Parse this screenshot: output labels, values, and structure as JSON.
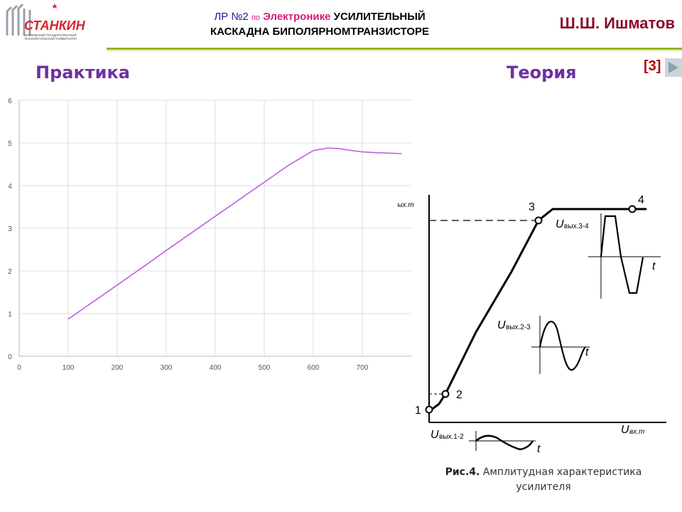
{
  "header": {
    "logo_text": "СТАНКИН",
    "logo_subtitle": "МОСКОВСКИЙ ГОСУДАРСТВЕННЫЙ ТЕХНОЛОГИЧЕСКИЙ УНИВЕРСИТЕТ",
    "lr": "ЛР №2",
    "po": "по",
    "subject": "Электронике",
    "title_line1": "УСИЛИТЕЛЬНЫЙ",
    "title_line2": "КАСКАДНА БИПОЛЯРНОМТРАНЗИСТОРЕ",
    "author": "Ш.Ш. Ишматов"
  },
  "practice_label": "Практика",
  "theory_label": "Теория",
  "reference": "[3]",
  "colors": {
    "curve": "#c060e0",
    "header_accent": "#8fb31f",
    "label": "#7030a0",
    "author": "#8b0a2a"
  },
  "chart_data": {
    "type": "line",
    "x": [
      100,
      150,
      200,
      250,
      300,
      350,
      400,
      450,
      500,
      550,
      600,
      630,
      650,
      680,
      700,
      730,
      760,
      780
    ],
    "series": [
      {
        "values": [
          0.87,
          1.27,
          1.67,
          2.07,
          2.48,
          2.88,
          3.28,
          3.68,
          4.08,
          4.48,
          4.82,
          4.88,
          4.87,
          4.82,
          4.79,
          4.77,
          4.76,
          4.75
        ]
      }
    ],
    "xticks": [
      "0",
      "100",
      "200",
      "300",
      "400",
      "500",
      "600",
      "700"
    ],
    "yticks": [
      "0",
      "1",
      "2",
      "3",
      "4",
      "5",
      "6"
    ],
    "xlim": [
      0,
      800
    ],
    "ylim": [
      0,
      6
    ],
    "grid": true
  },
  "theory_figure": {
    "y_axis_label": "U",
    "y_axis_sub": "вых.m",
    "x_axis_label": "U",
    "x_axis_sub": "вх.m",
    "points": [
      "1",
      "2",
      "3",
      "4"
    ],
    "inset_labels": [
      "вых.3-4",
      "вых.2-3",
      "вых.1-2"
    ],
    "time_label": "t"
  },
  "caption": {
    "bold": "Рис.4.",
    "text": "Амплитудная характеристика усилителя"
  }
}
